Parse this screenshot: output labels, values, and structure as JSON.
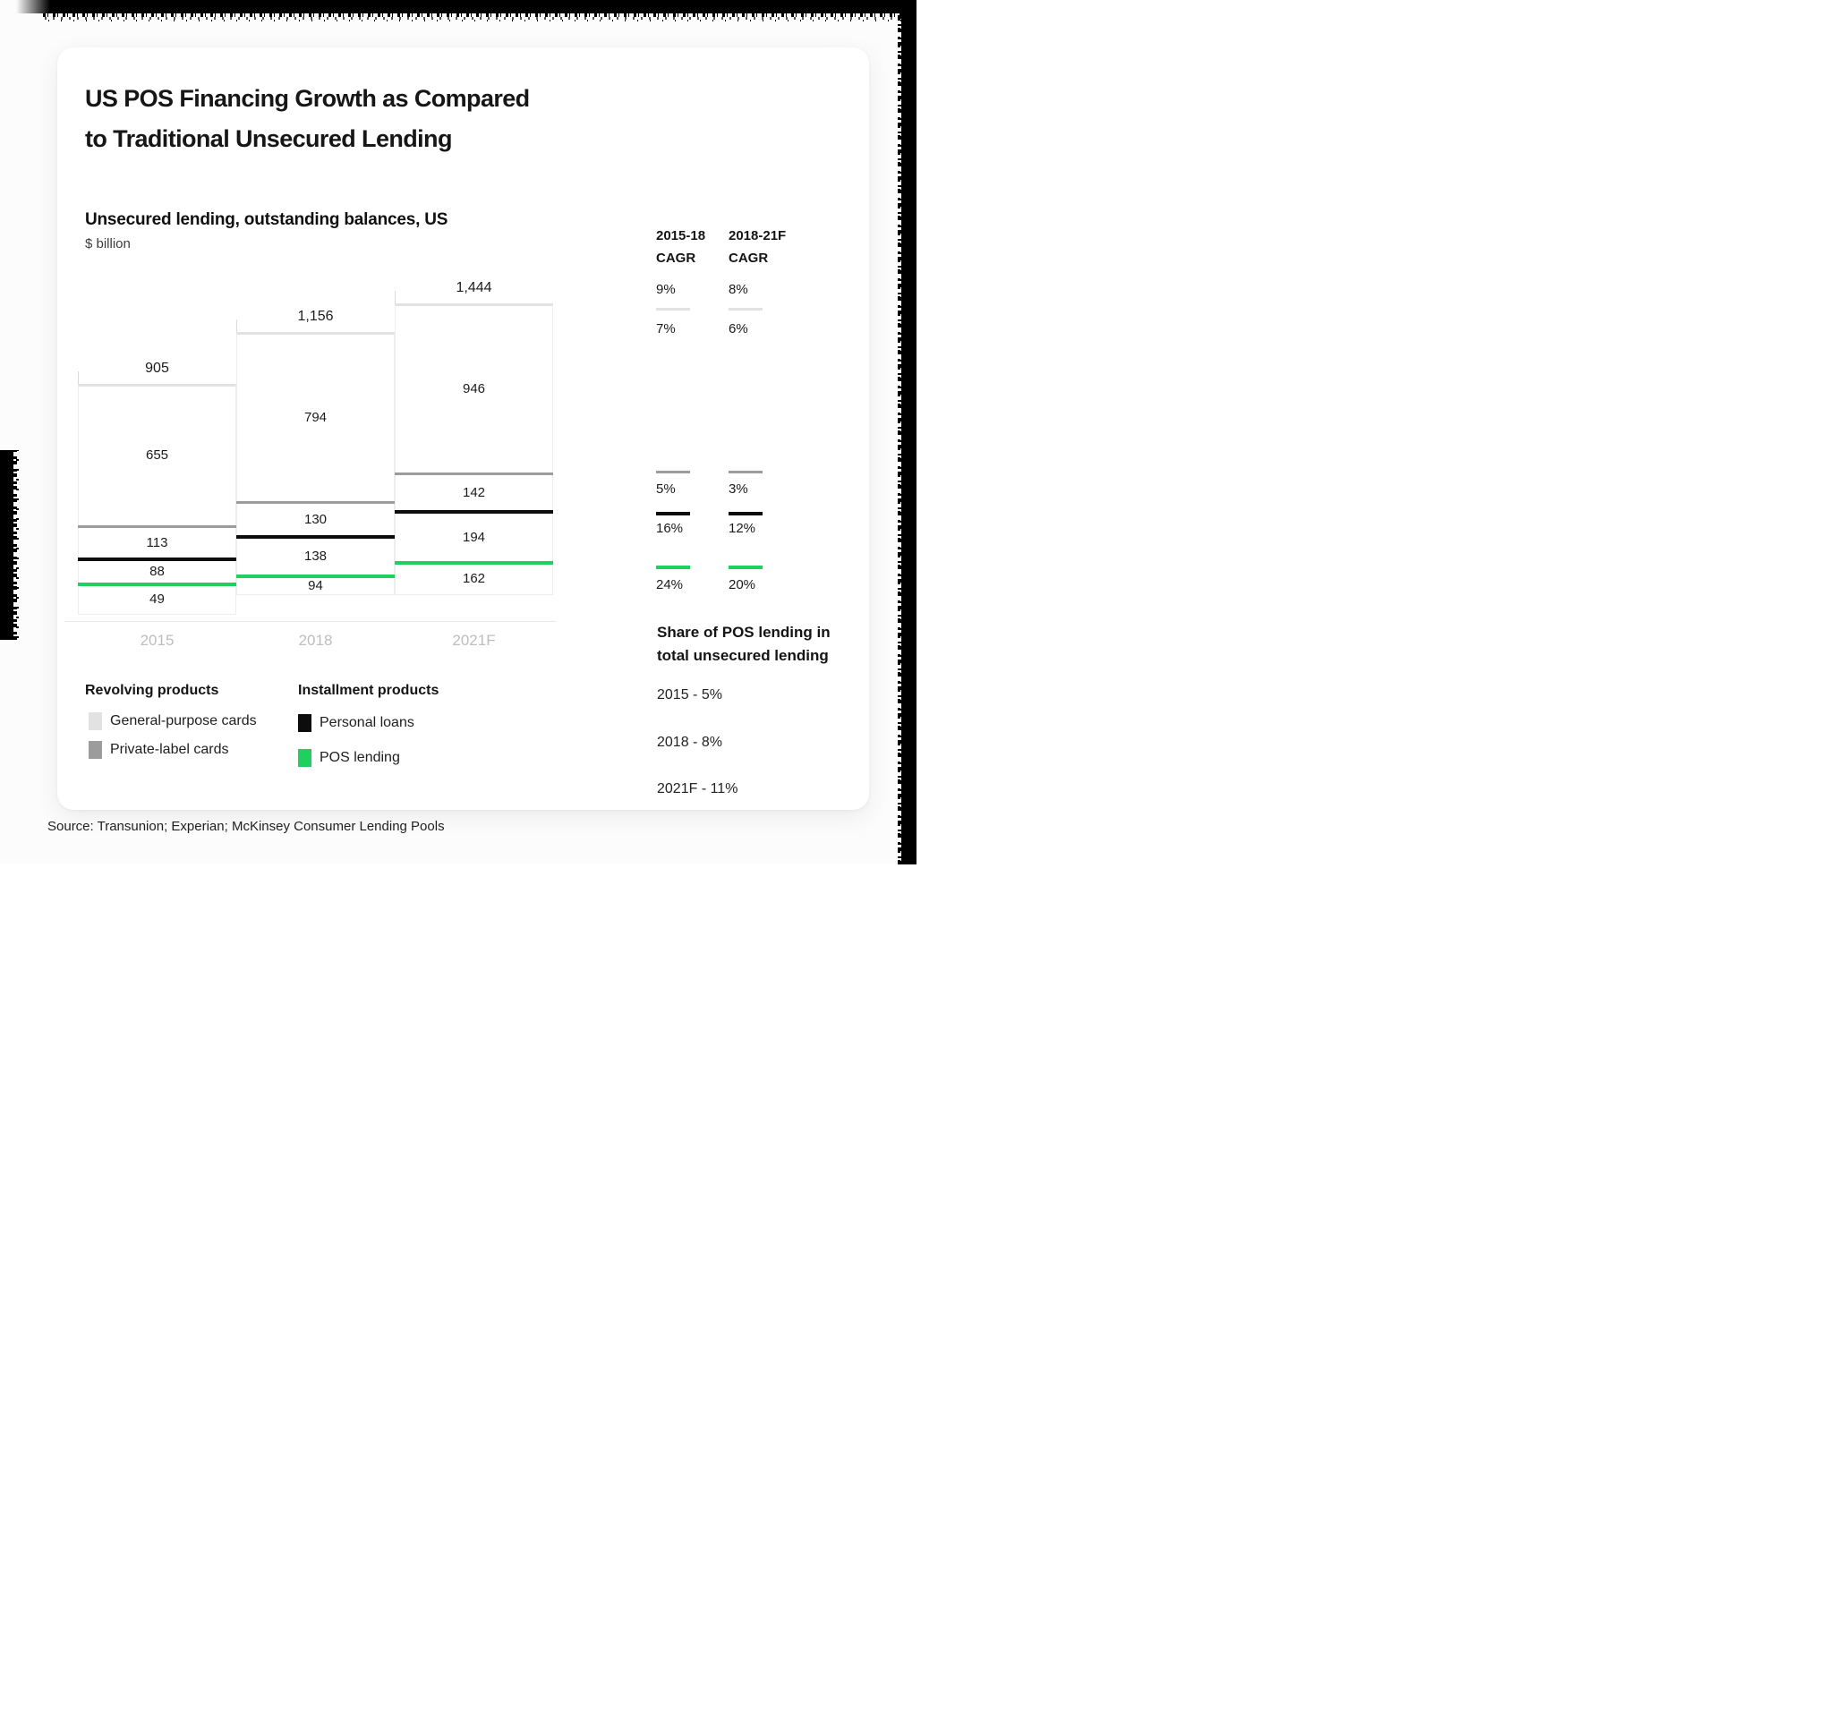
{
  "title": {
    "line1": "US POS Financing Growth as Compared",
    "line2": "to Traditional Unsecured Lending"
  },
  "chart": {
    "heading": "Unsecured lending, outstanding balances, US",
    "unit": "$ billion"
  },
  "chart_data": {
    "type": "bar",
    "stacked": true,
    "title": "Unsecured lending, outstanding balances, US",
    "unit": "$ billion",
    "categories": [
      "2015",
      "2018",
      "2021F"
    ],
    "series": [
      {
        "name": "General-purpose cards",
        "group": "Revolving products",
        "color": "#e2e2e2",
        "values": [
          655,
          794,
          946
        ]
      },
      {
        "name": "Private-label cards",
        "group": "Revolving products",
        "color": "#9c9c9c",
        "values": [
          113,
          130,
          142
        ]
      },
      {
        "name": "Personal loans",
        "group": "Installment products",
        "color": "#0d0d0d",
        "values": [
          88,
          138,
          194
        ]
      },
      {
        "name": "POS lending",
        "group": "Installment products",
        "color": "#20d05e",
        "values": [
          49,
          94,
          162
        ]
      }
    ],
    "totals": [
      905,
      1156,
      1444
    ],
    "totals_display": [
      "905",
      "1,156",
      "1,444"
    ],
    "value_labels_display": [
      [
        "655",
        "794",
        "946"
      ],
      [
        "113",
        "130",
        "142"
      ],
      [
        "88",
        "138",
        "194"
      ],
      [
        "49",
        "94",
        "162"
      ]
    ],
    "cagr": {
      "periods": [
        "2015-18",
        "2018-21F"
      ],
      "total": [
        "9%",
        "8%"
      ],
      "by_series": {
        "General-purpose cards": [
          "7%",
          "6%"
        ],
        "Private-label cards": [
          "5%",
          "3%"
        ],
        "Personal loans": [
          "16%",
          "12%"
        ],
        "POS lending": [
          "24%",
          "20%"
        ]
      }
    },
    "share_of_pos_lending": {
      "2015": "5%",
      "2018": "8%",
      "2021F": "11%"
    },
    "legend_position": "bottom",
    "grid": false,
    "y_axis": "hidden"
  },
  "cagr": {
    "headers": [
      {
        "line1": "2015-18",
        "line2": "CAGR"
      },
      {
        "line1": "2018-21F",
        "line2": "CAGR"
      }
    ],
    "total_row": [
      "9%",
      "8%"
    ],
    "rows": [
      {
        "series": "General-purpose cards",
        "values": [
          "7%",
          "6%"
        ]
      },
      {
        "series": "Private-label cards",
        "values": [
          "5%",
          "3%"
        ]
      },
      {
        "series": "Personal loans",
        "values": [
          "16%",
          "12%"
        ]
      },
      {
        "series": "POS lending",
        "values": [
          "24%",
          "20%"
        ]
      }
    ]
  },
  "legend": {
    "groups": [
      {
        "heading": "Revolving products",
        "items": [
          "General-purpose cards",
          "Private-label cards"
        ]
      },
      {
        "heading": "Installment products",
        "items": [
          "Personal loans",
          "POS lending"
        ]
      }
    ]
  },
  "share": {
    "title_line1": "Share of POS lending in",
    "title_line2": "total unsecured lending",
    "items": [
      "2015 - 5%",
      "2018 - 8%",
      "2021F - 11%"
    ]
  },
  "source": "Source: Transunion; Experian; McKinsey Consumer Lending Pools"
}
